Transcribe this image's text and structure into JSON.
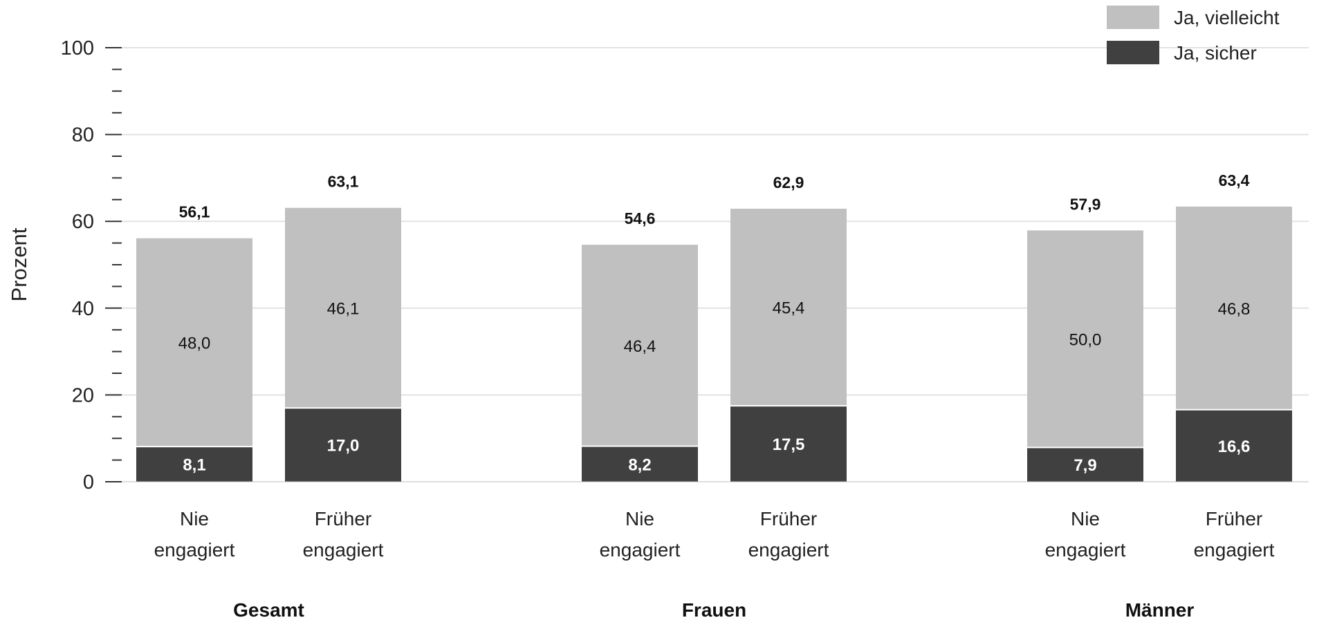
{
  "chart_data": {
    "type": "bar",
    "stacked": true,
    "ylabel": "Prozent",
    "ylim": [
      0,
      100
    ],
    "yticks": [
      0,
      20,
      40,
      60,
      80,
      100
    ],
    "grid": true,
    "legend_position": "top-right",
    "groups": [
      "Gesamt",
      "Frauen",
      "Männer"
    ],
    "categories": [
      "Nie engagiert",
      "Früher engagiert"
    ],
    "category_lines": [
      [
        "Nie",
        "engagiert"
      ],
      [
        "Früher",
        "engagiert"
      ]
    ],
    "series": [
      {
        "name": "Ja, sicher",
        "color": "#404040",
        "values": [
          [
            8.1,
            17.0
          ],
          [
            8.2,
            17.5
          ],
          [
            7.9,
            16.6
          ]
        ],
        "labels": [
          [
            "8,1",
            "17,0"
          ],
          [
            "8,2",
            "17,5"
          ],
          [
            "7,9",
            "16,6"
          ]
        ]
      },
      {
        "name": "Ja, vielleicht",
        "color": "#c0c0c0",
        "values": [
          [
            48.0,
            46.1
          ],
          [
            46.4,
            45.4
          ],
          [
            50.0,
            46.8
          ]
        ],
        "labels": [
          [
            "48,0",
            "46,1"
          ],
          [
            "46,4",
            "45,4"
          ],
          [
            "50,0",
            "46,8"
          ]
        ]
      }
    ],
    "totals": [
      [
        56.1,
        63.1
      ],
      [
        54.6,
        62.9
      ],
      [
        57.9,
        63.4
      ]
    ],
    "total_labels": [
      [
        "56,1",
        "63,1"
      ],
      [
        "54,6",
        "62,9"
      ],
      [
        "57,9",
        "63,4"
      ]
    ],
    "legend_order": [
      "Ja, vielleicht",
      "Ja, sicher"
    ]
  }
}
